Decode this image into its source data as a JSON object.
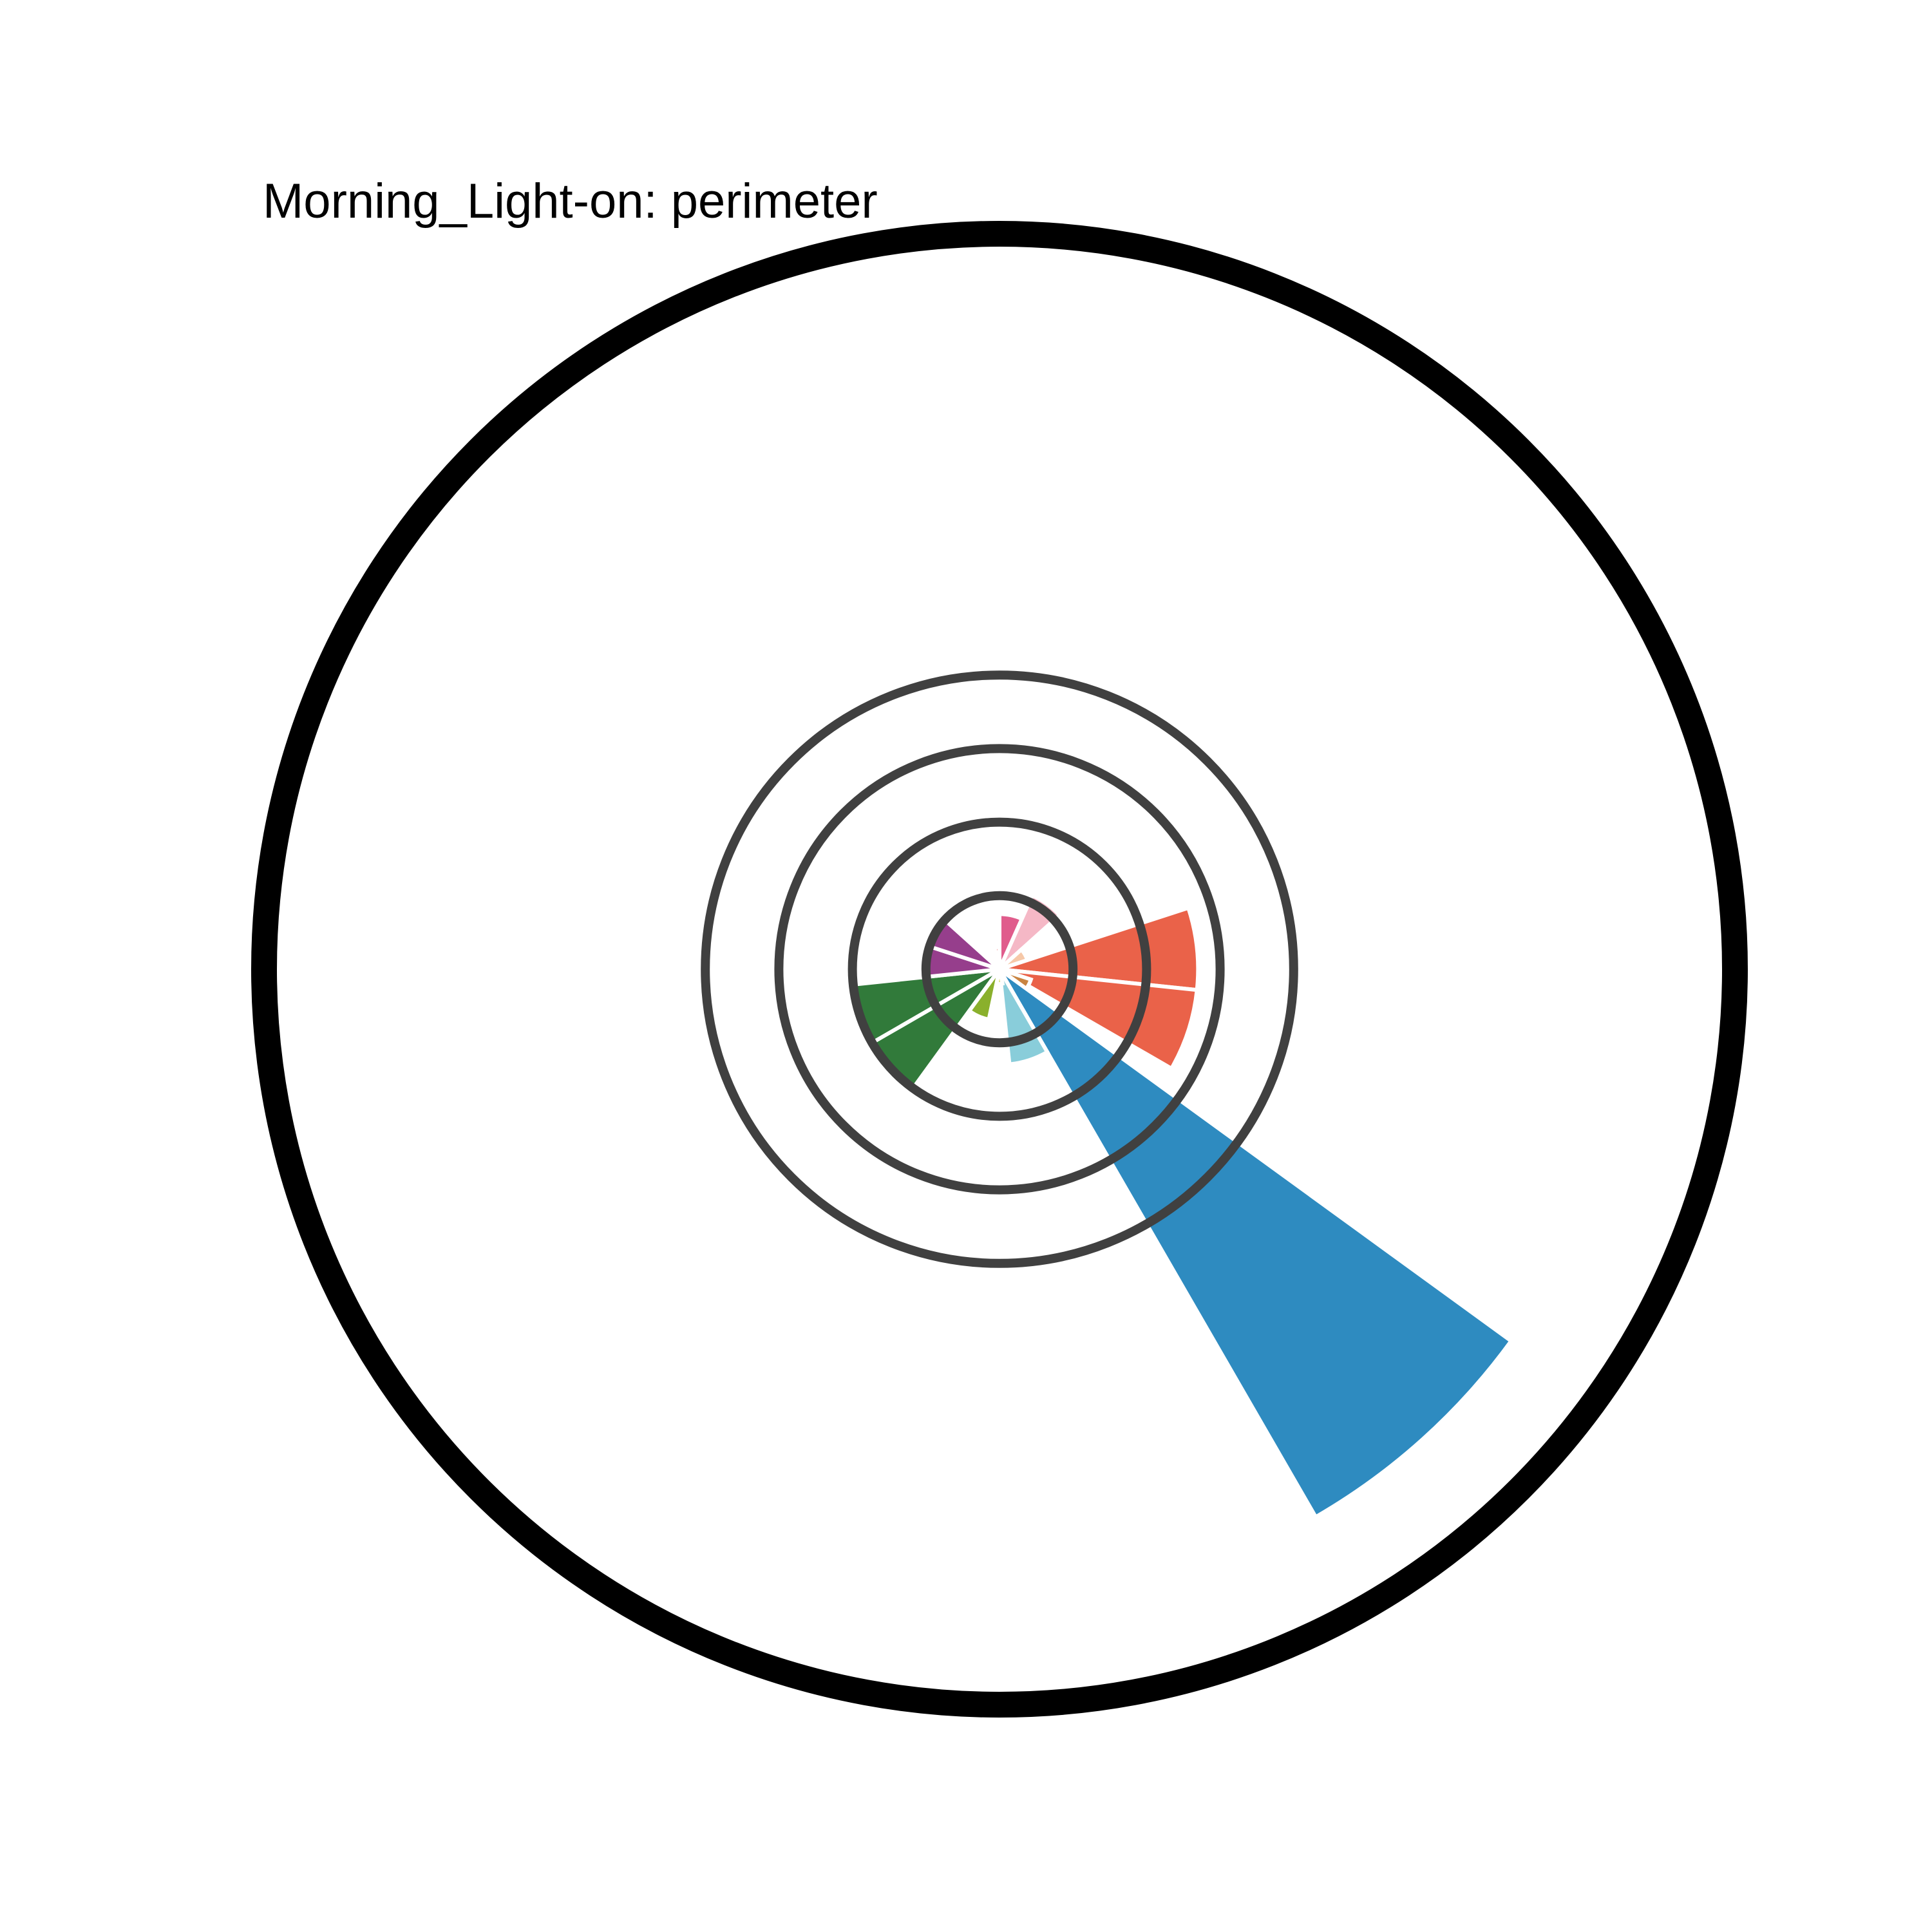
{
  "chart_data": {
    "type": "polar-bar",
    "title": "Morning_Light-on: perimeter",
    "rmax": 1.0,
    "grid": true,
    "grid_color": "#404040",
    "frame_color": "#000000",
    "grid_rings": [
      0.1,
      0.2,
      0.3,
      0.4
    ],
    "sectors": [
      {
        "angle": 0,
        "value": 0.03,
        "color": "#E8262C"
      },
      {
        "angle": 12,
        "value": 0.075,
        "color": "#E05C8C"
      },
      {
        "angle": 36,
        "value": 0.11,
        "color": "#F5B8C6"
      },
      {
        "angle": 60,
        "value": 0.04,
        "color": "#F6C8A8"
      },
      {
        "angle": 84,
        "value": 0.27,
        "color": "#EA6249"
      },
      {
        "angle": 108,
        "value": 0.27,
        "color": "#EA6249"
      },
      {
        "angle": 120,
        "value": 0.045,
        "color": "#C98441"
      },
      {
        "angle": 138,
        "value": 0.86,
        "color": "#2E8BC0"
      },
      {
        "angle": 162,
        "value": 0.13,
        "color": "#89CDDA"
      },
      {
        "angle": 180,
        "value": 0.02,
        "color": "#DDE27E"
      },
      {
        "angle": 204,
        "value": 0.07,
        "color": "#8AB02C"
      },
      {
        "angle": 228,
        "value": 0.2,
        "color": "#317A3A"
      },
      {
        "angle": 252,
        "value": 0.2,
        "color": "#317A3A"
      },
      {
        "angle": 276,
        "value": 0.105,
        "color": "#963E8C"
      },
      {
        "angle": 300,
        "value": 0.105,
        "color": "#963E8C"
      },
      {
        "angle": 324,
        "value": 0.01,
        "color": "#9E9E9E"
      }
    ]
  }
}
